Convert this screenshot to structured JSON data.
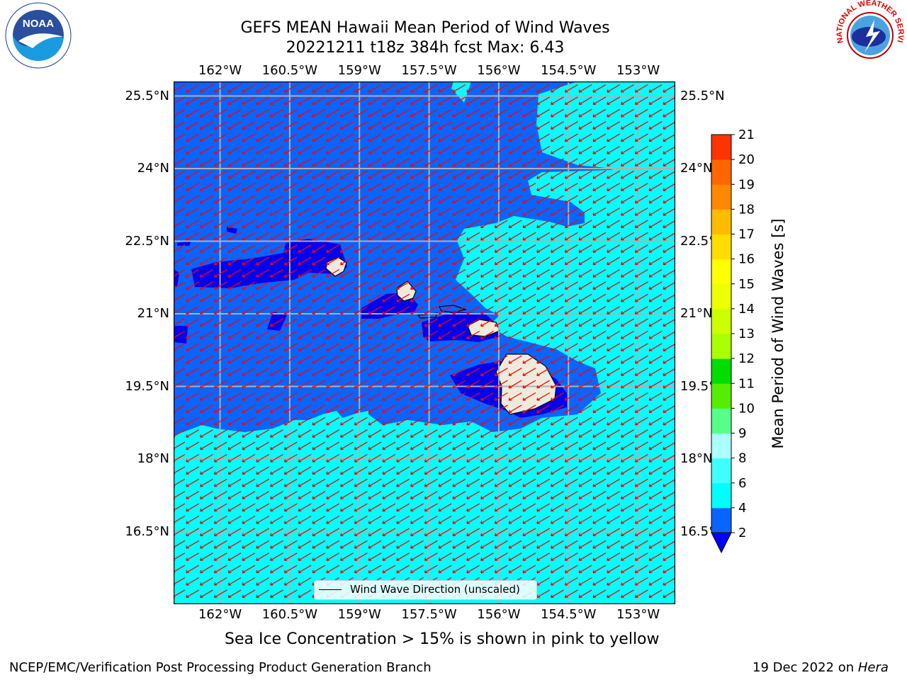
{
  "title_line1": "GEFS MEAN Hawaii Mean Period of Wind Waves",
  "title_line2": "20221211 t18z 384h fcst   Max: 6.43",
  "chart_data": {
    "type": "heatmap",
    "title": "GEFS MEAN Hawaii Mean Period of Wind Waves",
    "subtitle": "20221211 t18z 384h fcst   Max: 6.43",
    "x_ticks": [
      "162°W",
      "160.5°W",
      "159°W",
      "157.5°W",
      "156°W",
      "154.5°W",
      "153°W"
    ],
    "x_tick_values": [
      -162,
      -160.5,
      -159,
      -157.5,
      -156,
      -154.5,
      -153
    ],
    "y_ticks": [
      "25.5°N",
      "24°N",
      "22.5°N",
      "21°N",
      "19.5°N",
      "18°N",
      "16.5°N"
    ],
    "y_tick_values": [
      25.5,
      24,
      22.5,
      21,
      19.5,
      18,
      16.5
    ],
    "xlim": [
      -163,
      -152.2
    ],
    "ylim": [
      15.0,
      25.8
    ],
    "grid": true,
    "colorbar": {
      "label": "Mean Period of Wind Waves [s]",
      "ticks": [
        "2",
        "4",
        "6",
        "8",
        "9",
        "10",
        "11",
        "12",
        "13",
        "14",
        "15",
        "16",
        "17",
        "18",
        "19",
        "20",
        "21"
      ],
      "levels": [
        2,
        4,
        6,
        8,
        9,
        10,
        11,
        12,
        13,
        14,
        15,
        16,
        17,
        18,
        19,
        20,
        21
      ],
      "colors": [
        "#0a64ff",
        "#00ffff",
        "#40ffff",
        "#aaffff",
        "#55ff88",
        "#55ee00",
        "#00dd00",
        "#aaff00",
        "#ccff00",
        "#eeff00",
        "#ffff00",
        "#ffdd00",
        "#ffbb00",
        "#ff8800",
        "#ff6600",
        "#ff3300",
        "#ff0000"
      ],
      "under_color": "#0000ff"
    },
    "field_colors": {
      "lt2": "#0000ee",
      "2to4": "#0a64ff",
      "4to6": "#00ffff",
      "land": "#eeebdc"
    },
    "vectors": {
      "name": "Wind Wave Direction (unscaled)",
      "direction": "toward southwest",
      "color": "#ff0000"
    },
    "max_value": 6.43
  },
  "legend_label": "Wind Wave Direction (unscaled)",
  "note": "Sea Ice Concentration > 15% is shown in pink to yellow",
  "footer_left": "NCEP/EMC/Verification Post Processing Product Generation Branch",
  "footer_date": "19 Dec 2022 on ",
  "footer_host": "Hera",
  "logos": {
    "noaa": "NOAA",
    "nws": "NATIONAL WEATHER SERVICE"
  }
}
